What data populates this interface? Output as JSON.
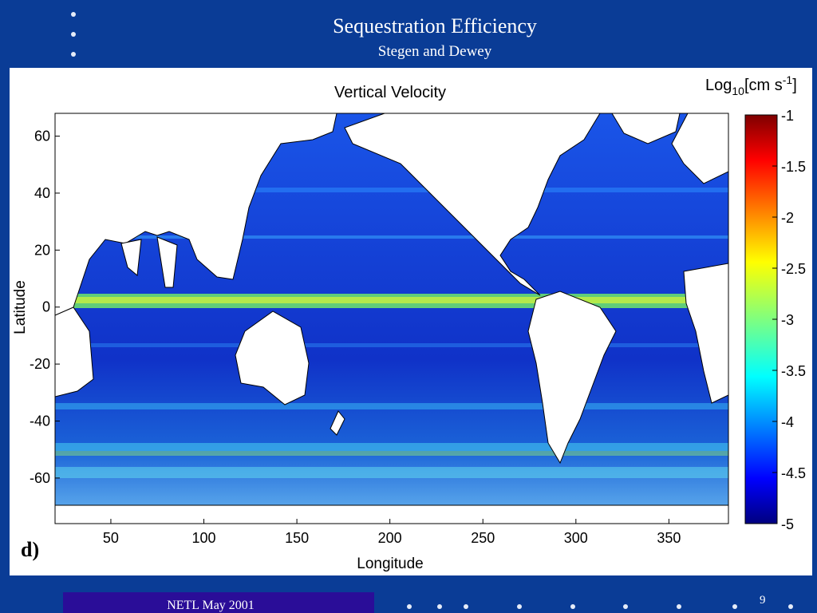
{
  "slide": {
    "title": "Sequestration Efficiency",
    "subtitle": "Stegen and Dewey",
    "footer": "NETL May 2001",
    "page_number": "9",
    "panel_label": "d)"
  },
  "colors": {
    "background": "#0a3c96",
    "footer_box": "#2a0d98",
    "land": "#ffffff",
    "ocean_base": "#1a3ed6"
  },
  "chart_data": {
    "type": "heatmap",
    "title": "Vertical Velocity",
    "xlabel": "Longitude",
    "ylabel": "Latitude",
    "xlim": [
      20,
      382
    ],
    "ylim": [
      -76,
      68
    ],
    "xticks": [
      50,
      100,
      150,
      200,
      250,
      300,
      350
    ],
    "yticks": [
      60,
      40,
      20,
      0,
      -20,
      -40,
      -60
    ],
    "grid": false,
    "colorbar": {
      "label_main": "Log",
      "label_sub": "10",
      "label_mid": "[cm s",
      "label_sup": "-1",
      "label_end": "]",
      "range": [
        -5,
        -1
      ],
      "ticks": [
        -1,
        -1.5,
        -2,
        -2.5,
        -3,
        -3.5,
        -4,
        -4.5,
        -5
      ],
      "colormap": "jet"
    }
  }
}
